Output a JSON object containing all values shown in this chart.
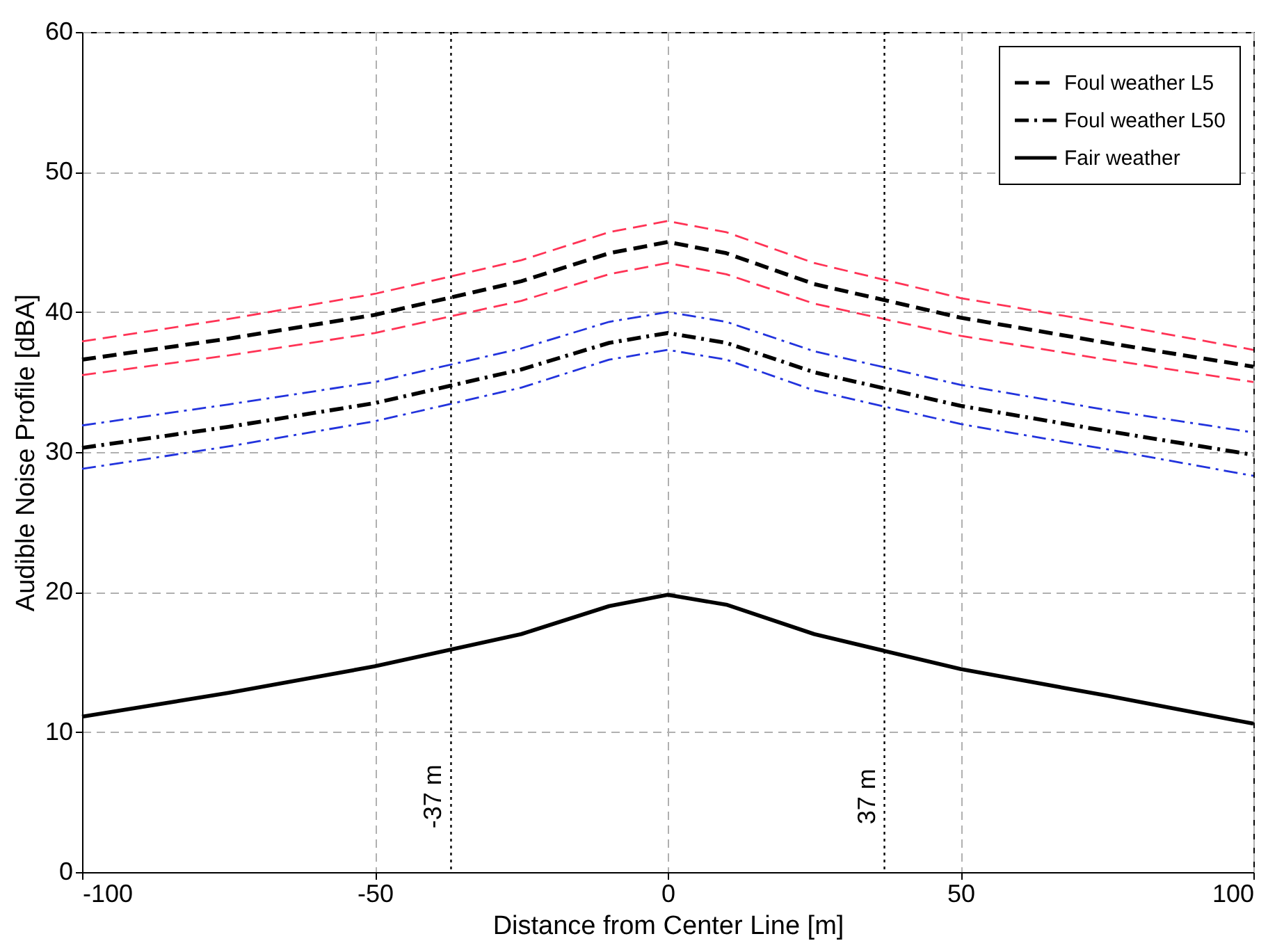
{
  "chart_data": {
    "type": "line",
    "xlabel": "Distance from Center Line [m]",
    "ylabel": "Audible Noise Profile [dBA]",
    "x": [
      -100,
      -75,
      -50,
      -25,
      -10,
      0,
      10,
      25,
      50,
      75,
      100
    ],
    "series": [
      {
        "name": "Foul weather L5",
        "color": "#000000",
        "line_style": "dashed",
        "values": [
          36.6,
          38.1,
          39.8,
          42.2,
          44.2,
          45.0,
          44.2,
          42.0,
          39.6,
          37.8,
          36.1
        ]
      },
      {
        "name": "Foul weather L50",
        "color": "#000000",
        "line_style": "dashdot",
        "values": [
          30.3,
          31.8,
          33.5,
          35.9,
          37.8,
          38.5,
          37.8,
          35.7,
          33.3,
          31.5,
          29.8
        ]
      },
      {
        "name": "Fair weather",
        "color": "#000000",
        "line_style": "solid",
        "values": [
          11.1,
          12.8,
          14.7,
          17.0,
          19.0,
          19.8,
          19.1,
          17.0,
          14.5,
          12.6,
          10.6
        ]
      },
      {
        "color": "#ff3355",
        "line_style": "dashed",
        "values": [
          37.9,
          39.5,
          41.3,
          43.7,
          45.7,
          46.5,
          45.7,
          43.5,
          41.0,
          39.2,
          37.3
        ]
      },
      {
        "color": "#ff3355",
        "line_style": "dashed",
        "values": [
          35.5,
          36.9,
          38.5,
          40.8,
          42.7,
          43.5,
          42.7,
          40.6,
          38.3,
          36.6,
          35.0
        ]
      },
      {
        "color": "#2233dd",
        "line_style": "dashdot",
        "values": [
          31.9,
          33.4,
          35.0,
          37.4,
          39.3,
          40.0,
          39.3,
          37.2,
          34.8,
          33.0,
          31.4
        ]
      },
      {
        "color": "#2233dd",
        "line_style": "dashdot",
        "values": [
          28.8,
          30.4,
          32.2,
          34.6,
          36.6,
          37.3,
          36.6,
          34.4,
          32.0,
          30.2,
          28.3
        ]
      }
    ],
    "xlim": [
      -100,
      100
    ],
    "xticks": [
      -100,
      -50,
      0,
      50,
      100
    ],
    "ylim": [
      0,
      60
    ],
    "yticks": [
      0,
      10,
      20,
      30,
      40,
      50,
      60
    ],
    "grid": true,
    "legend": "top right",
    "ref_lines": [
      {
        "axis": "x",
        "value": -37,
        "label": "-37 m",
        "color": "#000000",
        "line_style": "dotted"
      },
      {
        "axis": "x",
        "value": 37,
        "label": "37 m",
        "color": "#000000",
        "line_style": "dotted"
      }
    ]
  }
}
